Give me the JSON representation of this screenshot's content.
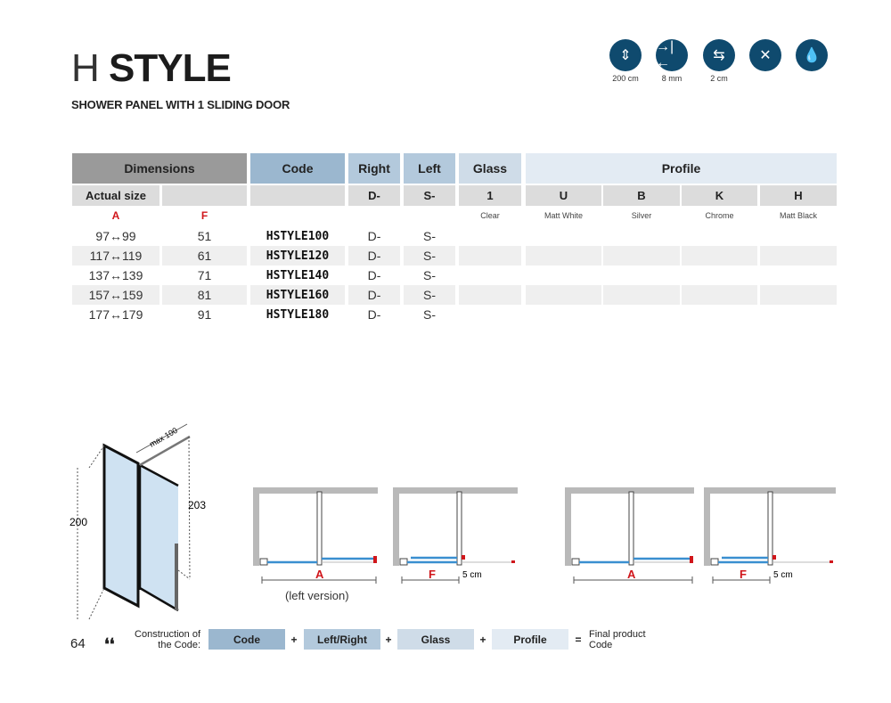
{
  "header": {
    "title_light": "H",
    "title_bold": "STYLE",
    "subtitle": "SHOWER PANEL WITH 1 SLIDING DOOR"
  },
  "features": [
    {
      "icon": "height-icon",
      "label": "200 cm"
    },
    {
      "icon": "glass-thickness-icon",
      "label": "8 mm"
    },
    {
      "icon": "adjustment-icon",
      "label": "2 cm"
    },
    {
      "icon": "not-reversible-icon",
      "label": ""
    },
    {
      "icon": "water-repellent-icon",
      "label": ""
    }
  ],
  "table": {
    "headers": {
      "dimensions": "Dimensions",
      "code": "Code",
      "right": "Right",
      "left": "Left",
      "glass": "Glass",
      "profile": "Profile"
    },
    "sub": {
      "actual_size": "Actual size",
      "right": "D-",
      "left": "S-",
      "glass": "1",
      "profiles": [
        "U",
        "B",
        "K",
        "H"
      ]
    },
    "labels": {
      "a": "A",
      "f": "F",
      "glass": "Clear",
      "profiles": [
        "Matt White",
        "Silver",
        "Chrome",
        "Matt Black"
      ]
    },
    "rows": [
      {
        "a": "97↔99",
        "f": "51",
        "code": "HSTYLE100",
        "right": "D-",
        "left": "S-"
      },
      {
        "a": "117↔119",
        "f": "61",
        "code": "HSTYLE120",
        "right": "D-",
        "left": "S-"
      },
      {
        "a": "137↔139",
        "f": "71",
        "code": "HSTYLE140",
        "right": "D-",
        "left": "S-"
      },
      {
        "a": "157↔159",
        "f": "81",
        "code": "HSTYLE160",
        "right": "D-",
        "left": "S-"
      },
      {
        "a": "177↔179",
        "f": "91",
        "code": "HSTYLE180",
        "right": "D-",
        "left": "S-"
      }
    ]
  },
  "drawing": {
    "height": "200",
    "total_height": "203",
    "max": "max 100",
    "a": "A",
    "f": "F",
    "gap": "5 cm",
    "left_version": "(left version)"
  },
  "footer": {
    "page": "64",
    "construction": "Construction of the Code:",
    "code": "Code",
    "plus": "+",
    "leftright": "Left/Right",
    "glass": "Glass",
    "profile": "Profile",
    "equals": "=",
    "final": "Final product Code"
  },
  "colors": {
    "icon": "#0f4a6e",
    "dimensions": "#9a9a9a",
    "code": "#9bb7cf",
    "rightleft": "#b3c9dc",
    "glass": "#cfdce8",
    "profile": "#e3ebf3",
    "glass_blue": "#3a8fd0",
    "accent_red": "#d0161b"
  }
}
